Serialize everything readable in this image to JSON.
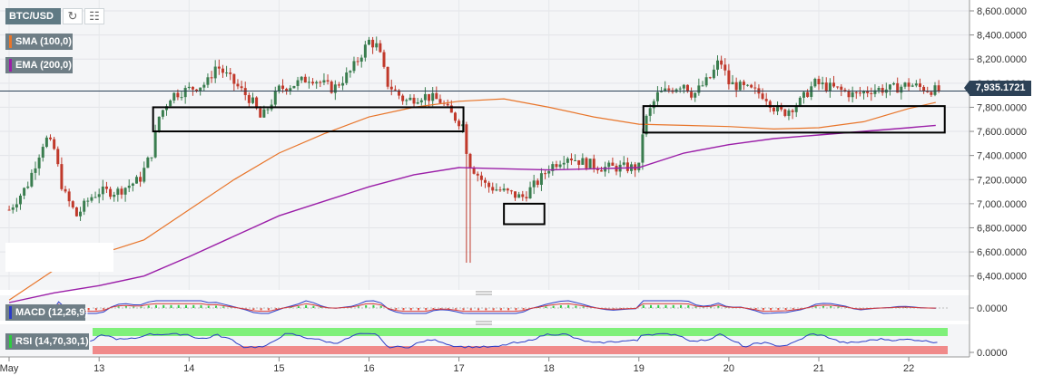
{
  "toolbar": {
    "symbol": "BTC/USD",
    "refresh_icon": "refresh-icon",
    "calendar_icon": "calendar-icon"
  },
  "indicators": {
    "sma": {
      "label": "SMA (100,0)",
      "color": "#e8752a"
    },
    "ema": {
      "label": "EMA (200,0)",
      "color": "#9b1fa8"
    },
    "macd": {
      "label": "MACD (12,26,9)",
      "color": "#2b3cc7"
    },
    "rsi": {
      "label": "RSI (14,70,30,1)",
      "color": "#2b3cc7"
    }
  },
  "last_price": "7,935.1721",
  "colors": {
    "up": "#3a7d4f",
    "down": "#c0392b",
    "panel_bg": "#f4f5f7",
    "rsi_top": "#7ff07a",
    "rsi_bottom": "#f08a8a"
  },
  "chart_data": {
    "type": "candlestick",
    "symbol": "BTC/USD",
    "y_ticks": [
      "8,600.0000",
      "8,400.0000",
      "8,200.0000",
      "8,000.0000",
      "7,800.0000",
      "7,600.0000",
      "7,400.0000",
      "7,200.0000",
      "7,000.0000",
      "6,800.0000",
      "6,600.0000",
      "6,400.0000"
    ],
    "ylim": [
      6300,
      8630
    ],
    "x_ticks": [
      "May",
      "13",
      "14",
      "15",
      "16",
      "17",
      "18",
      "19",
      "20",
      "21",
      "22"
    ],
    "last_price": 7935.1721,
    "macd_ticks": [
      "0.0000"
    ],
    "rsi_ticks": [
      "0.0000"
    ],
    "highlight_boxes": [
      {
        "from": "13.6",
        "to": "17.05",
        "low": 7600,
        "high": 7800
      },
      {
        "from": "17.5",
        "to": "17.95",
        "low": 6830,
        "high": 7000
      },
      {
        "from": "19.05",
        "to": "22.4",
        "low": 7590,
        "high": 7810
      }
    ],
    "close_path_points": [
      [
        12.0,
        6950
      ],
      [
        12.2,
        7150
      ],
      [
        12.4,
        7550
      ],
      [
        12.5,
        7450
      ],
      [
        12.6,
        7100
      ],
      [
        12.75,
        6900
      ],
      [
        12.9,
        7050
      ],
      [
        13.0,
        7100
      ],
      [
        13.2,
        7100
      ],
      [
        13.45,
        7200
      ],
      [
        13.6,
        7450
      ],
      [
        13.65,
        7700
      ],
      [
        13.8,
        7900
      ],
      [
        14.0,
        7950
      ],
      [
        14.2,
        8000
      ],
      [
        14.3,
        8150
      ],
      [
        14.5,
        8000
      ],
      [
        14.7,
        7850
      ],
      [
        14.8,
        7700
      ],
      [
        15.0,
        7950
      ],
      [
        15.2,
        8000
      ],
      [
        15.35,
        8050
      ],
      [
        15.6,
        7950
      ],
      [
        15.8,
        8100
      ],
      [
        16.0,
        8350
      ],
      [
        16.1,
        8300
      ],
      [
        16.2,
        8000
      ],
      [
        16.4,
        7850
      ],
      [
        16.6,
        7900
      ],
      [
        16.8,
        7850
      ],
      [
        16.9,
        7750
      ],
      [
        17.05,
        7650
      ],
      [
        17.1,
        7350
      ],
      [
        17.2,
        7250
      ],
      [
        17.3,
        7150
      ],
      [
        17.5,
        7100
      ],
      [
        17.7,
        7050
      ],
      [
        17.9,
        7200
      ],
      [
        18.0,
        7300
      ],
      [
        18.2,
        7400
      ],
      [
        18.35,
        7350
      ],
      [
        18.6,
        7300
      ],
      [
        18.8,
        7300
      ],
      [
        19.0,
        7300
      ],
      [
        19.05,
        7650
      ],
      [
        19.2,
        7900
      ],
      [
        19.5,
        8000
      ],
      [
        19.6,
        7900
      ],
      [
        19.8,
        8050
      ],
      [
        19.9,
        8200
      ],
      [
        20.0,
        8000
      ],
      [
        20.2,
        7950
      ],
      [
        20.4,
        7900
      ],
      [
        20.5,
        7800
      ],
      [
        20.6,
        7750
      ],
      [
        20.8,
        7850
      ],
      [
        20.95,
        8000
      ],
      [
        21.2,
        7950
      ],
      [
        21.4,
        7900
      ],
      [
        21.6,
        7950
      ],
      [
        21.8,
        7950
      ],
      [
        22.0,
        7990
      ],
      [
        22.2,
        7950
      ],
      [
        22.35,
        7935
      ]
    ],
    "sma_points": [
      [
        12.0,
        6200
      ],
      [
        12.5,
        6450
      ],
      [
        13.0,
        6580
      ],
      [
        13.5,
        6700
      ],
      [
        14.0,
        6950
      ],
      [
        14.5,
        7200
      ],
      [
        15.0,
        7420
      ],
      [
        15.5,
        7580
      ],
      [
        16.0,
        7720
      ],
      [
        16.5,
        7800
      ],
      [
        17.0,
        7850
      ],
      [
        17.5,
        7870
      ],
      [
        18.0,
        7800
      ],
      [
        18.5,
        7720
      ],
      [
        19.0,
        7660
      ],
      [
        19.5,
        7650
      ],
      [
        20.0,
        7640
      ],
      [
        20.5,
        7620
      ],
      [
        21.0,
        7630
      ],
      [
        21.5,
        7680
      ],
      [
        22.0,
        7790
      ],
      [
        22.3,
        7840
      ]
    ],
    "ema_points": [
      [
        12.0,
        6180
      ],
      [
        12.5,
        6260
      ],
      [
        13.0,
        6320
      ],
      [
        13.5,
        6400
      ],
      [
        14.0,
        6560
      ],
      [
        14.5,
        6730
      ],
      [
        15.0,
        6900
      ],
      [
        15.5,
        7020
      ],
      [
        16.0,
        7140
      ],
      [
        16.5,
        7240
      ],
      [
        17.0,
        7300
      ],
      [
        17.5,
        7290
      ],
      [
        18.0,
        7280
      ],
      [
        18.5,
        7290
      ],
      [
        19.0,
        7300
      ],
      [
        19.5,
        7420
      ],
      [
        20.0,
        7490
      ],
      [
        20.5,
        7540
      ],
      [
        21.0,
        7570
      ],
      [
        21.5,
        7600
      ],
      [
        22.0,
        7630
      ],
      [
        22.3,
        7650
      ]
    ]
  }
}
